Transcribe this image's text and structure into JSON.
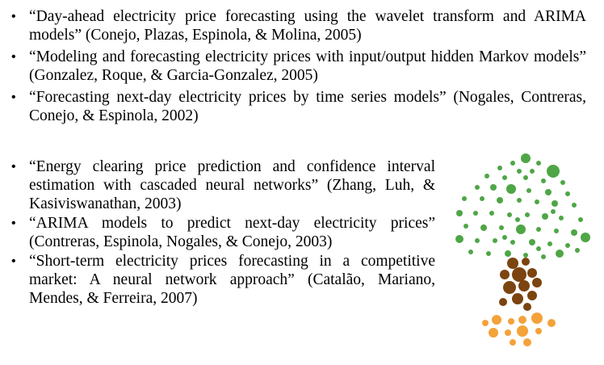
{
  "references_top": [
    {
      "text": "“Day-ahead electricity price forecasting using the wavelet transform and ARIMA models” (Conejo, Plazas, Espinola, & Molina, 2005)"
    },
    {
      "text": "“Modeling and forecasting electricity prices with input/output hidden Markov models” (Gonzalez, Roque, & Garcia-Gonzalez, 2005)"
    },
    {
      "text": "“Forecasting next-day electricity prices by time series models” (Nogales, Contreras, Conejo, & Espinola, 2002)"
    }
  ],
  "references_bottom": [
    {
      "text": "“Energy clearing price prediction and confidence interval estimation with cascaded neural networks” (Zhang, Luh, & Kasiviswanathan, 2003)"
    },
    {
      "text": "“ARIMA models to predict next-day electricity prices” (Contreras, Espinola, Nogales, & Conejo, 2003)"
    },
    {
      "text": "“Short-term electricity prices forecasting in a competitive market: A neural network approach” (Catalão, Mariano, Mendes, & Ferreira, 2007)"
    }
  ],
  "illustration": {
    "icon": "dot-tree-icon",
    "colors": {
      "leaves": "#4ea646",
      "trunk": "#7b4410",
      "roots": "#f4a23a"
    }
  }
}
